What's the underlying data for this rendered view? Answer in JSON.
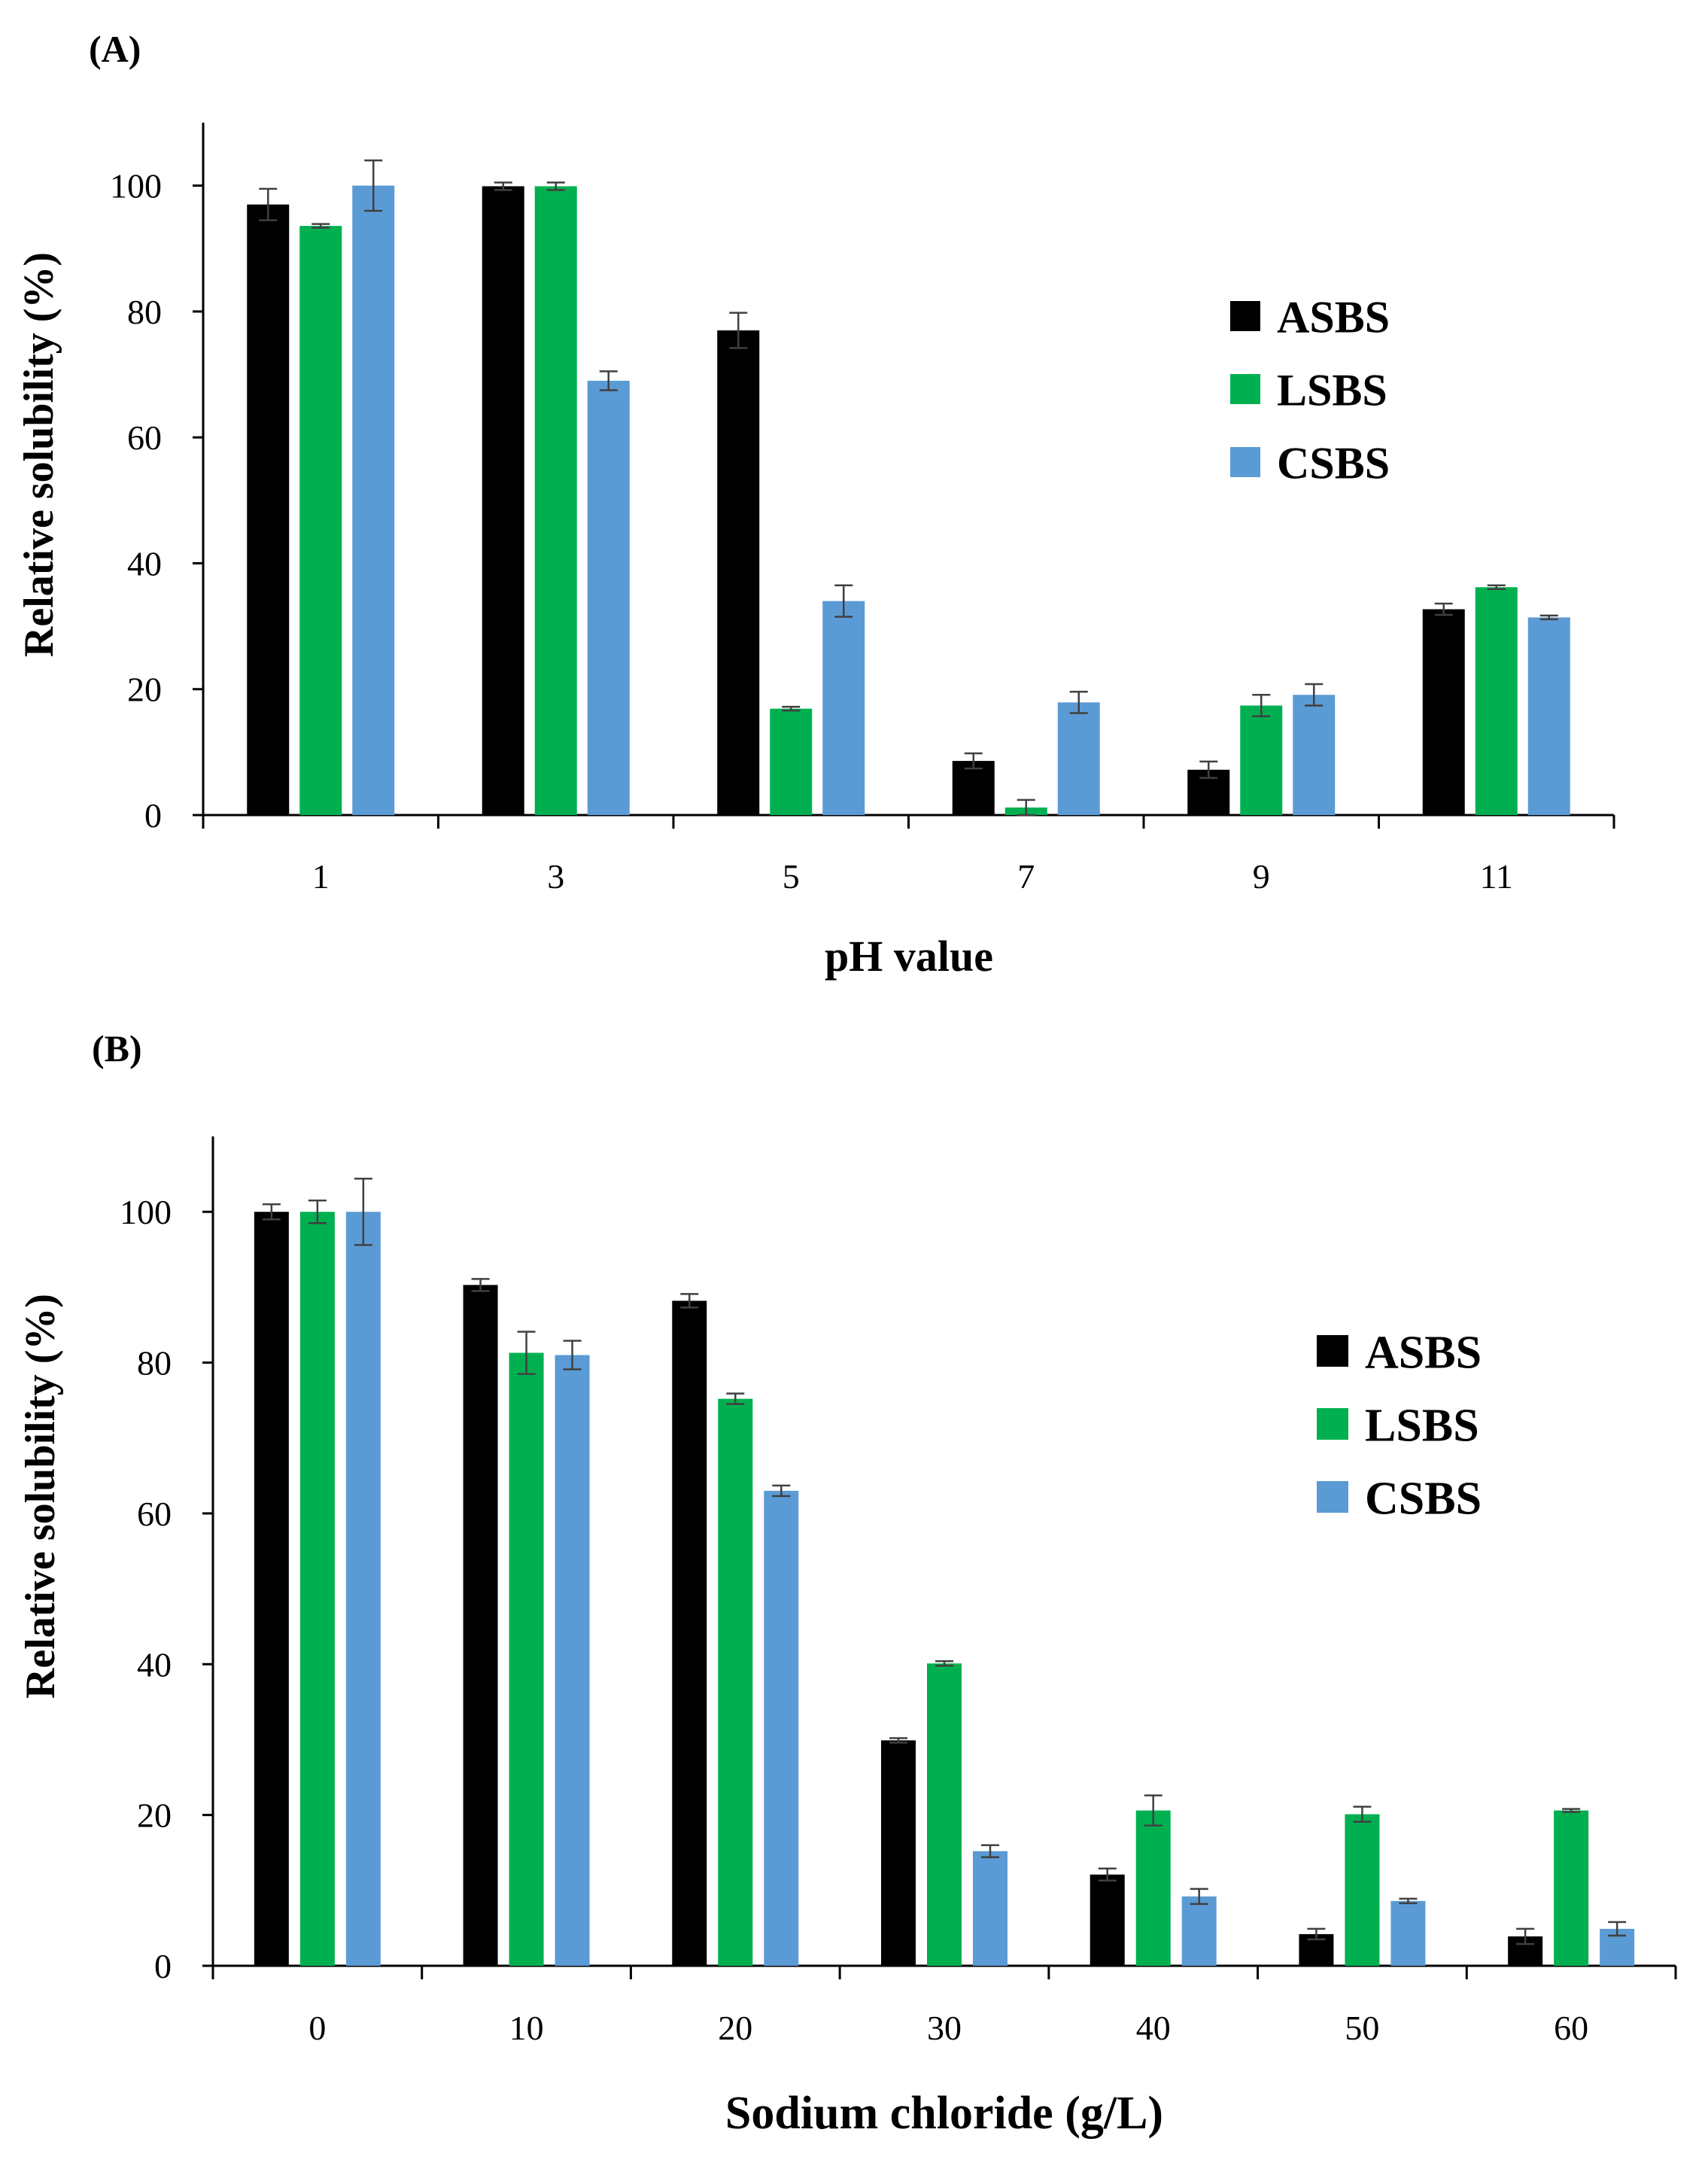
{
  "colors": {
    "ASBS": "#000000",
    "LSBS": "#00b050",
    "CSBS": "#5b9bd5",
    "axis": "#000000",
    "error": "#404040"
  },
  "chart_data": [
    {
      "panel_label": "(A)",
      "type": "bar",
      "xlabel": "pH value",
      "ylabel": "Relative solubility (%)",
      "ylim": [
        0,
        110
      ],
      "yticks": [
        0,
        20,
        40,
        60,
        80,
        100
      ],
      "categories": [
        "1",
        "3",
        "5",
        "7",
        "9",
        "11"
      ],
      "legend": {
        "position": "top-right",
        "entries": [
          "ASBS",
          "LSBS",
          "CSBS"
        ]
      },
      "series": [
        {
          "name": "ASBS",
          "values": [
            97.0,
            99.9,
            77.0,
            8.6,
            7.2,
            32.7
          ],
          "errors": [
            2.5,
            0.6,
            2.8,
            1.2,
            1.3,
            0.9
          ]
        },
        {
          "name": "LSBS",
          "values": [
            93.6,
            99.9,
            16.9,
            1.2,
            17.4,
            36.2
          ],
          "errors": [
            0.3,
            0.6,
            0.3,
            1.2,
            1.7,
            0.3
          ]
        },
        {
          "name": "CSBS",
          "values": [
            100.0,
            69.0,
            34.0,
            17.9,
            19.1,
            31.4
          ],
          "errors": [
            4.0,
            1.5,
            2.5,
            1.7,
            1.7,
            0.3
          ]
        }
      ]
    },
    {
      "panel_label": "(B)",
      "type": "bar",
      "xlabel": "Sodium chloride (g/L)",
      "ylabel": "Relative solubility (%)",
      "ylim": [
        0,
        110
      ],
      "yticks": [
        0,
        20,
        40,
        60,
        80,
        100
      ],
      "categories": [
        "0",
        "10",
        "20",
        "30",
        "40",
        "50",
        "60"
      ],
      "legend": {
        "position": "top-right",
        "entries": [
          "ASBS",
          "LSBS",
          "CSBS"
        ]
      },
      "series": [
        {
          "name": "ASBS",
          "values": [
            100.0,
            90.3,
            88.2,
            29.9,
            12.1,
            4.2,
            3.9
          ],
          "errors": [
            1.0,
            0.8,
            0.9,
            0.3,
            0.8,
            0.7,
            1.0
          ]
        },
        {
          "name": "LSBS",
          "values": [
            100.0,
            81.3,
            75.2,
            40.1,
            20.6,
            20.1,
            20.6
          ],
          "errors": [
            1.5,
            2.8,
            0.7,
            0.3,
            2.0,
            1.0,
            0.2
          ]
        },
        {
          "name": "CSBS",
          "values": [
            100.0,
            81.0,
            63.0,
            15.2,
            9.2,
            8.6,
            4.9
          ],
          "errors": [
            4.4,
            1.9,
            0.7,
            0.8,
            1.0,
            0.3,
            0.9
          ]
        }
      ]
    }
  ]
}
